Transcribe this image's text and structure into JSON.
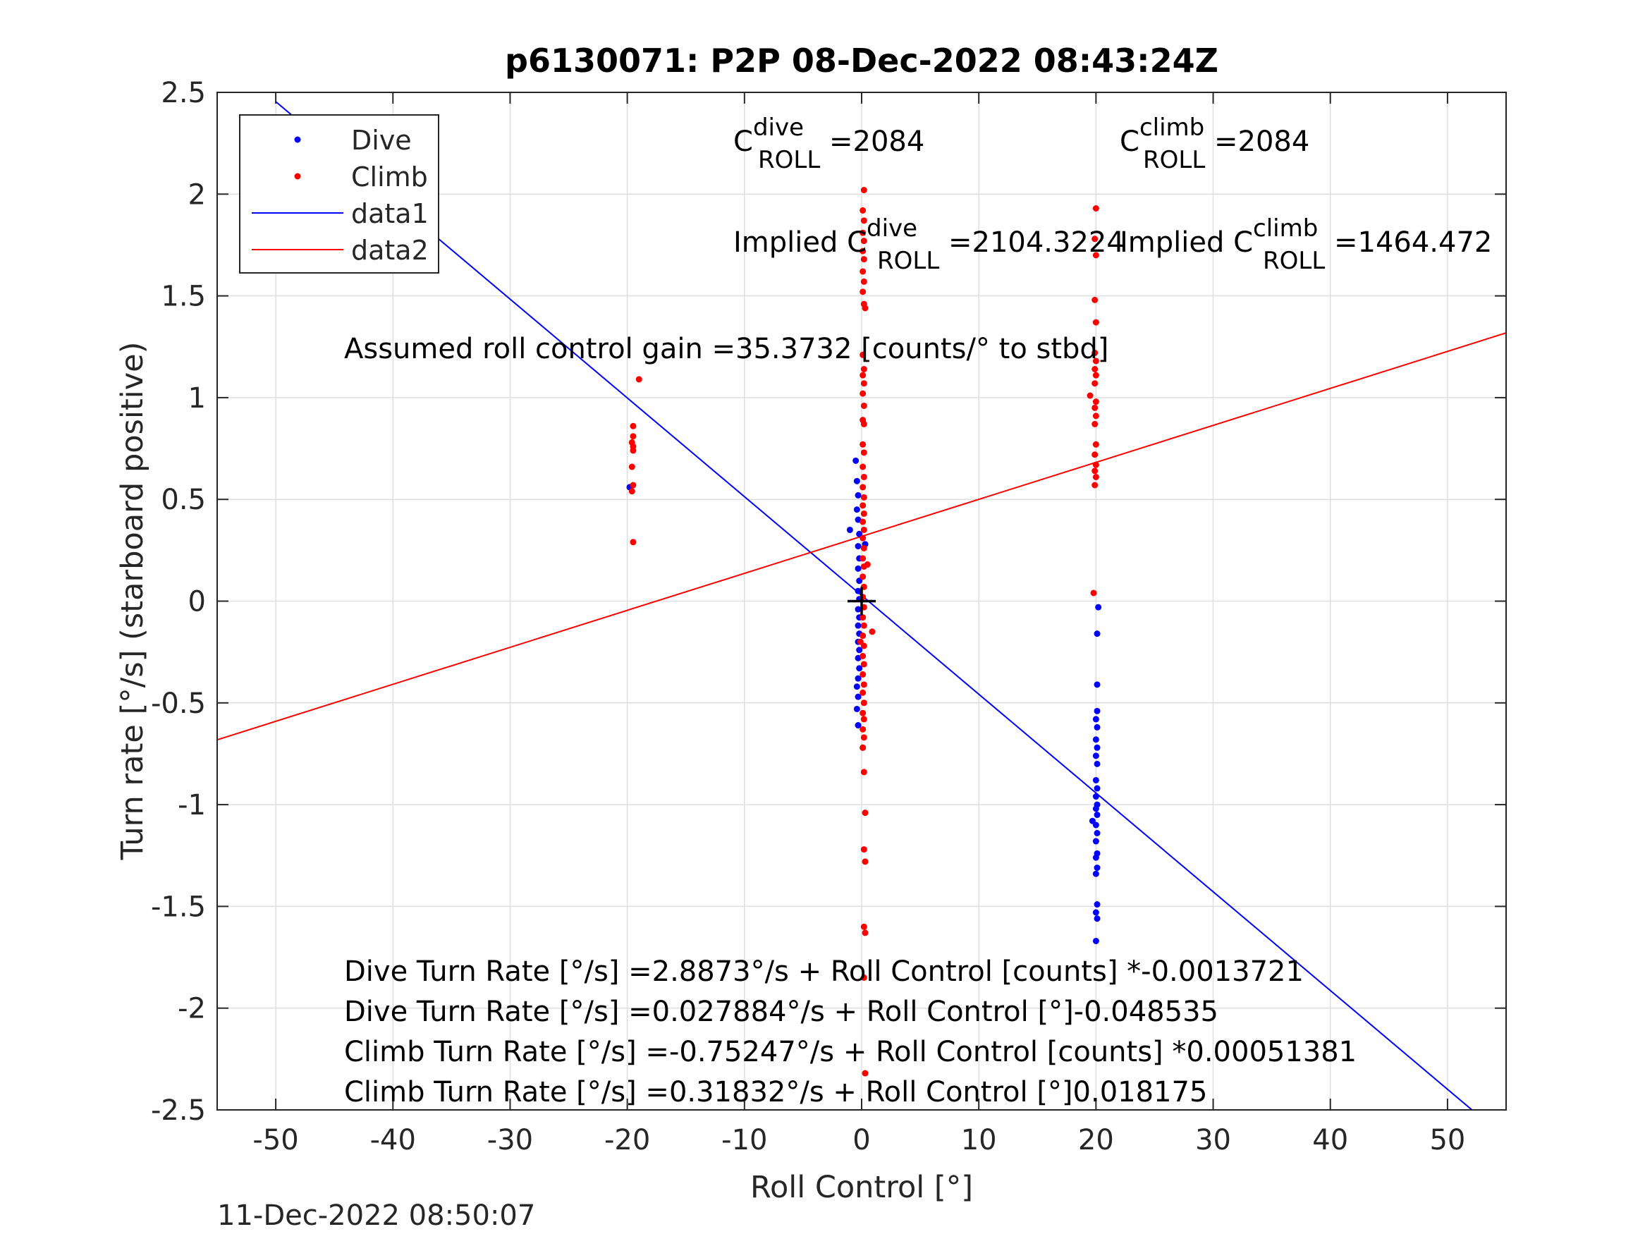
{
  "chart_data": {
    "type": "scatter",
    "title": "p6130071: P2P 08-Dec-2022 08:43:24Z",
    "xlabel": "Roll Control [°]",
    "ylabel": "Turn rate [°/s] (starboard positive)",
    "xlim": [
      -55,
      55
    ],
    "ylim": [
      -2.5,
      2.5
    ],
    "xticks": [
      -50,
      -40,
      -30,
      -20,
      -10,
      0,
      10,
      20,
      30,
      40,
      50
    ],
    "yticks": [
      2.5,
      2,
      1.5,
      1,
      0.5,
      0,
      -0.5,
      -1,
      -1.5,
      -2,
      -2.5
    ],
    "xtick_labels": [
      "-50",
      "-40",
      "-30",
      "-20",
      "-10",
      "0",
      "10",
      "20",
      "30",
      "40",
      "50"
    ],
    "ytick_labels": [
      "2.5",
      "2",
      "1.5",
      "1",
      "0.5",
      "0",
      "-0.5",
      "-1",
      "-1.5",
      "-2",
      "-2.5"
    ],
    "grid": true,
    "legend_position": "top-left",
    "legend": [
      {
        "name": "Dive",
        "kind": "marker",
        "color": "#0000ff"
      },
      {
        "name": "Climb",
        "kind": "marker",
        "color": "#ff0000"
      },
      {
        "name": "data1",
        "kind": "line",
        "color": "#0000ff"
      },
      {
        "name": "data2",
        "kind": "line",
        "color": "#ff0000"
      }
    ],
    "series": [
      {
        "name": "Dive",
        "kind": "scatter",
        "color": "#0000ff",
        "points": [
          [
            -19.8,
            0.56
          ],
          [
            -1.0,
            0.35
          ],
          [
            -0.5,
            0.69
          ],
          [
            -0.4,
            0.59
          ],
          [
            -0.3,
            0.52
          ],
          [
            -0.4,
            0.45
          ],
          [
            -0.3,
            0.4
          ],
          [
            -0.2,
            0.33
          ],
          [
            -0.3,
            0.27
          ],
          [
            -0.2,
            0.21
          ],
          [
            -0.3,
            0.16
          ],
          [
            -0.2,
            0.1
          ],
          [
            -0.3,
            0.05
          ],
          [
            -0.2,
            0.01
          ],
          [
            -0.3,
            -0.04
          ],
          [
            -0.2,
            -0.08
          ],
          [
            -0.3,
            -0.12
          ],
          [
            -0.2,
            -0.16
          ],
          [
            -0.3,
            -0.2
          ],
          [
            -0.2,
            -0.24
          ],
          [
            -0.3,
            -0.28
          ],
          [
            -0.2,
            -0.33
          ],
          [
            -0.3,
            -0.38
          ],
          [
            -0.4,
            -0.42
          ],
          [
            -0.3,
            -0.47
          ],
          [
            -0.4,
            -0.53
          ],
          [
            -0.3,
            -0.61
          ],
          [
            0.1,
            -0.72
          ],
          [
            0.3,
            0.28
          ],
          [
            20.2,
            -0.03
          ],
          [
            20.1,
            -0.16
          ],
          [
            20.1,
            -0.41
          ],
          [
            20.1,
            -0.54
          ],
          [
            20.0,
            -0.58
          ],
          [
            20.1,
            -0.62
          ],
          [
            20.0,
            -0.68
          ],
          [
            20.1,
            -0.72
          ],
          [
            20.0,
            -0.76
          ],
          [
            20.1,
            -0.8
          ],
          [
            20.0,
            -0.88
          ],
          [
            20.1,
            -0.92
          ],
          [
            20.0,
            -0.96
          ],
          [
            20.1,
            -1.0
          ],
          [
            20.0,
            -1.02
          ],
          [
            20.1,
            -1.05
          ],
          [
            19.7,
            -1.08
          ],
          [
            20.0,
            -1.1
          ],
          [
            20.1,
            -1.14
          ],
          [
            20.0,
            -1.18
          ],
          [
            20.1,
            -1.24
          ],
          [
            20.0,
            -1.26
          ],
          [
            20.1,
            -1.31
          ],
          [
            20.0,
            -1.34
          ],
          [
            20.1,
            -1.49
          ],
          [
            20.0,
            -1.53
          ],
          [
            20.1,
            -1.56
          ],
          [
            20.0,
            -1.67
          ]
        ]
      },
      {
        "name": "Climb",
        "kind": "scatter",
        "color": "#ff0000",
        "points": [
          [
            -19.5,
            0.86
          ],
          [
            -19.5,
            0.81
          ],
          [
            -19.6,
            0.78
          ],
          [
            -19.5,
            0.76
          ],
          [
            -19.5,
            0.74
          ],
          [
            -19.6,
            0.66
          ],
          [
            -19.5,
            0.57
          ],
          [
            -19.6,
            0.54
          ],
          [
            -19.5,
            0.29
          ],
          [
            -19.0,
            1.09
          ],
          [
            0.2,
            2.02
          ],
          [
            0.1,
            1.92
          ],
          [
            0.2,
            1.87
          ],
          [
            0.1,
            1.81
          ],
          [
            0.2,
            1.77
          ],
          [
            0.1,
            1.72
          ],
          [
            0.2,
            1.68
          ],
          [
            0.1,
            1.62
          ],
          [
            0.2,
            1.57
          ],
          [
            0.1,
            1.52
          ],
          [
            0.2,
            1.46
          ],
          [
            0.3,
            1.44
          ],
          [
            0.1,
            1.21
          ],
          [
            0.2,
            1.14
          ],
          [
            0.1,
            1.11
          ],
          [
            0.2,
            1.07
          ],
          [
            0.1,
            1.02
          ],
          [
            0.2,
            0.96
          ],
          [
            0.1,
            0.89
          ],
          [
            0.2,
            0.87
          ],
          [
            0.1,
            0.77
          ],
          [
            0.2,
            0.73
          ],
          [
            0.1,
            0.66
          ],
          [
            0.2,
            0.61
          ],
          [
            0.1,
            0.56
          ],
          [
            0.2,
            0.51
          ],
          [
            0.1,
            0.47
          ],
          [
            0.2,
            0.43
          ],
          [
            0.1,
            0.39
          ],
          [
            0.2,
            0.35
          ],
          [
            0.1,
            0.31
          ],
          [
            0.2,
            0.26
          ],
          [
            0.1,
            0.21
          ],
          [
            0.2,
            0.17
          ],
          [
            0.1,
            0.12
          ],
          [
            0.2,
            0.07
          ],
          [
            0.1,
            0.02
          ],
          [
            0.2,
            -0.03
          ],
          [
            0.1,
            -0.08
          ],
          [
            0.2,
            -0.12
          ],
          [
            0.1,
            -0.17
          ],
          [
            0.2,
            -0.22
          ],
          [
            0.1,
            -0.27
          ],
          [
            0.2,
            -0.31
          ],
          [
            0.1,
            -0.36
          ],
          [
            0.2,
            -0.41
          ],
          [
            0.1,
            -0.45
          ],
          [
            0.2,
            -0.5
          ],
          [
            0.1,
            -0.55
          ],
          [
            0.2,
            -0.58
          ],
          [
            0.1,
            -0.63
          ],
          [
            0.2,
            -0.67
          ],
          [
            0.1,
            -0.72
          ],
          [
            0.2,
            -0.84
          ],
          [
            0.3,
            -1.04
          ],
          [
            0.2,
            -1.22
          ],
          [
            0.3,
            -1.28
          ],
          [
            0.2,
            -1.6
          ],
          [
            0.3,
            -1.63
          ],
          [
            0.2,
            -1.85
          ],
          [
            0.3,
            -2.32
          ],
          [
            0.9,
            -0.15
          ],
          [
            -0.1,
            -0.2
          ],
          [
            0.5,
            0.18
          ],
          [
            20.0,
            1.93
          ],
          [
            19.9,
            1.78
          ],
          [
            20.0,
            1.7
          ],
          [
            19.9,
            1.48
          ],
          [
            20.0,
            1.37
          ],
          [
            19.9,
            1.22
          ],
          [
            20.0,
            1.18
          ],
          [
            19.9,
            1.14
          ],
          [
            20.0,
            1.11
          ],
          [
            19.9,
            1.07
          ],
          [
            19.5,
            1.01
          ],
          [
            20.0,
            0.98
          ],
          [
            19.9,
            0.95
          ],
          [
            20.0,
            0.91
          ],
          [
            19.9,
            0.87
          ],
          [
            20.0,
            0.77
          ],
          [
            19.9,
            0.72
          ],
          [
            20.0,
            0.67
          ],
          [
            19.9,
            0.64
          ],
          [
            20.0,
            0.61
          ],
          [
            19.9,
            0.57
          ],
          [
            19.8,
            0.04
          ]
        ]
      },
      {
        "name": "data1",
        "kind": "line",
        "color": "#0000ff",
        "points": [
          [
            -50,
            2.4546
          ],
          [
            55,
            -2.6414
          ]
        ]
      },
      {
        "name": "data2",
        "kind": "line",
        "color": "#ff0000",
        "points": [
          [
            -55,
            -0.6813
          ],
          [
            55,
            1.318
          ]
        ]
      },
      {
        "name": "origin-cross",
        "kind": "marker",
        "color": "#000000",
        "points": [
          [
            0,
            0
          ]
        ]
      }
    ],
    "annotations": {
      "c_dive_base": "C",
      "c_dive_sup": "dive",
      "c_dive_sub": "ROLL",
      "c_dive_value": " =2084",
      "c_climb_base": "C",
      "c_climb_sup": "climb",
      "c_climb_sub": "ROLL",
      "c_climb_value": " =2084",
      "implied_dive_prefix": "Implied C",
      "implied_dive_sup": "dive",
      "implied_dive_sub": "ROLL",
      "implied_dive_value": " =2104.3224",
      "implied_climb_prefix": "Implied C",
      "implied_climb_sup": "climb",
      "implied_climb_sub": "ROLL",
      "implied_climb_value": " =1464.472",
      "gain": "Assumed roll control gain =35.3732 [counts/° to stbd]",
      "fit_lines": [
        "Dive Turn Rate [°/s] =2.8873°/s + Roll Control [counts] *-0.0013721",
        "Dive Turn Rate [°/s] =0.027884°/s + Roll Control [°]-0.048535",
        "Climb Turn Rate [°/s] =-0.75247°/s + Roll Control [counts] *0.00051381",
        "Climb Turn Rate [°/s] =0.31832°/s + Roll Control [°]0.018175"
      ]
    },
    "timestamp": "11-Dec-2022 08:50:07"
  }
}
